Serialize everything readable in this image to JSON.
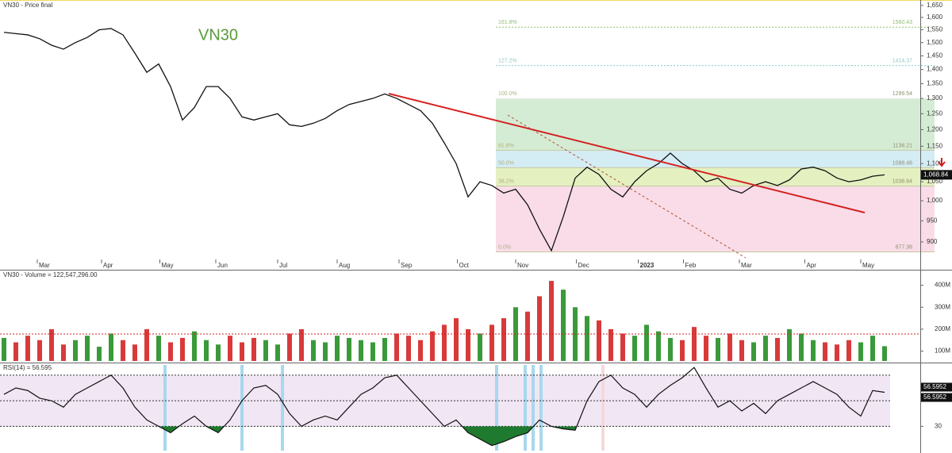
{
  "chart_data": [
    {
      "type": "line",
      "title": "VN30 - Price final",
      "annotation": "VN30",
      "log_scale": true,
      "color": "#111111",
      "xlim": [
        0,
        74
      ],
      "xticks": [
        {
          "value": 2.8,
          "label": "Mar"
        },
        {
          "value": 8.2,
          "label": "Apr"
        },
        {
          "value": 13.1,
          "label": "May"
        },
        {
          "value": 17.8,
          "label": "Jun"
        },
        {
          "value": 23,
          "label": "Jul"
        },
        {
          "value": 28,
          "label": "Aug"
        },
        {
          "value": 33.2,
          "label": "Sep"
        },
        {
          "value": 38.1,
          "label": "Oct"
        },
        {
          "value": 43,
          "label": "Nov"
        },
        {
          "value": 48.1,
          "label": "Dec"
        },
        {
          "value": 53.3,
          "label": "2023"
        },
        {
          "value": 57.1,
          "label": "Feb"
        },
        {
          "value": 61.8,
          "label": "Mar"
        },
        {
          "value": 67.3,
          "label": "Apr"
        },
        {
          "value": 72,
          "label": "May"
        }
      ],
      "ylim": [
        864,
        1673
      ],
      "yticks": [
        900,
        950,
        {
          "value": 1000,
          "label": "1,000"
        },
        {
          "value": 1050,
          "label": "1,050"
        },
        {
          "value": 1100,
          "label": "1,100"
        },
        {
          "value": 1150,
          "label": "1,150"
        },
        {
          "value": 1200,
          "label": "1,200"
        },
        {
          "value": 1250,
          "label": "1,250"
        },
        {
          "value": 1300,
          "label": "1,300"
        },
        {
          "value": 1350,
          "label": "1,350"
        },
        {
          "value": 1400,
          "label": "1,400"
        },
        {
          "value": 1450,
          "label": "1,450"
        },
        {
          "value": 1500,
          "label": "1,500"
        },
        {
          "value": 1550,
          "label": "1,550"
        },
        {
          "value": 1600,
          "label": "1,600"
        },
        {
          "value": 1650,
          "label": "1,650"
        }
      ],
      "values": [
        1540,
        1535,
        1530,
        1515,
        1490,
        1475,
        1500,
        1520,
        1550,
        1555,
        1530,
        1460,
        1390,
        1420,
        1340,
        1230,
        1270,
        1340,
        1340,
        1300,
        1240,
        1230,
        1240,
        1250,
        1215,
        1210,
        1220,
        1235,
        1260,
        1280,
        1290,
        1300,
        1315,
        1300,
        1280,
        1260,
        1220,
        1160,
        1100,
        1010,
        1050,
        1040,
        1020,
        1030,
        990,
        930,
        880,
        960,
        1060,
        1090,
        1070,
        1030,
        1010,
        1050,
        1080,
        1100,
        1130,
        1100,
        1080,
        1050,
        1060,
        1030,
        1020,
        1040,
        1050,
        1040,
        1055,
        1085,
        1090,
        1080,
        1060,
        1050,
        1055,
        1065,
        1068.84
      ],
      "last_price": {
        "value": 1068.84,
        "label": "1,068.84"
      },
      "fib_levels": [
        {
          "pct": "0.0%",
          "value": 877.38,
          "color": "#f9dce8"
        },
        {
          "pct": "38.2%",
          "value": 1038.64,
          "color": "#e4f0c0"
        },
        {
          "pct": "50.0%",
          "value": 1088.46,
          "color": "#d4ecf4"
        },
        {
          "pct": "61.8%",
          "value": 1138.21,
          "color": "#d5ecd4"
        },
        {
          "pct": "100.0%",
          "value": 1299.54,
          "color": "#eeeaea"
        },
        {
          "pct": "127.2%",
          "value": 1414.37,
          "color": "#8fc8c8"
        },
        {
          "pct": "161.8%",
          "value": 1560.43,
          "color": "#90c070"
        }
      ]
    },
    {
      "type": "bar",
      "title": "VN30 - Volume = 122,547,296.00",
      "up_color": "#3a9a3a",
      "down_color": "#d83a3a",
      "ylim": [
        55,
        460
      ],
      "yticks": [
        {
          "value": 100,
          "label": "100M"
        },
        {
          "value": 200,
          "label": "200M"
        },
        {
          "value": 300,
          "label": "300M"
        },
        {
          "value": 400,
          "label": "400M"
        }
      ],
      "values": [
        160,
        140,
        170,
        150,
        200,
        130,
        150,
        170,
        120,
        180,
        150,
        130,
        200,
        170,
        140,
        160,
        190,
        150,
        130,
        170,
        140,
        160,
        150,
        130,
        180,
        200,
        150,
        140,
        170,
        160,
        150,
        140,
        160,
        180,
        170,
        150,
        190,
        220,
        250,
        200,
        180,
        220,
        250,
        300,
        280,
        350,
        420,
        380,
        300,
        260,
        240,
        200,
        180,
        170,
        220,
        190,
        160,
        150,
        210,
        170,
        160,
        180,
        150,
        140,
        170,
        160,
        200,
        180,
        150,
        140,
        130,
        150,
        140,
        170,
        122.5
      ]
    },
    {
      "type": "line",
      "title": "RSI(14) = 56.595",
      "color": "#111111",
      "fill_color": "#1e7a2e",
      "ylim": [
        11,
        78
      ],
      "yticks": [
        30
      ],
      "levels": [
        30,
        50,
        70
      ],
      "last_value": 56.5952,
      "values": [
        55,
        60,
        58,
        52,
        50,
        45,
        55,
        60,
        65,
        70,
        60,
        45,
        35,
        30,
        25,
        32,
        38,
        30,
        25,
        35,
        50,
        60,
        62,
        55,
        40,
        30,
        35,
        38,
        35,
        45,
        55,
        60,
        68,
        70,
        60,
        50,
        40,
        30,
        35,
        25,
        20,
        15,
        18,
        22,
        25,
        35,
        30,
        28,
        27,
        50,
        65,
        70,
        60,
        55,
        45,
        55,
        62,
        68,
        76,
        60,
        45,
        50,
        42,
        48,
        40,
        50,
        55,
        60,
        65,
        60,
        55,
        45,
        38,
        58,
        56.6
      ]
    }
  ]
}
